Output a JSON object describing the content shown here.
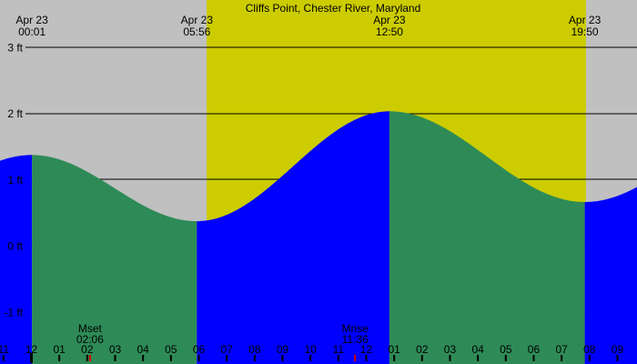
{
  "chart_data": {
    "type": "area",
    "title": "Cliffs Point, Chester River, Maryland",
    "description": "Tide level curve; blue fill = rising (flood) tide, green fill = falling (ebb) tide; yellow band = daylight, gray = night",
    "y_axis": {
      "unit": "ft",
      "ticks": [
        {
          "label": "3 ft",
          "value": 3
        },
        {
          "label": "2 ft",
          "value": 2
        },
        {
          "label": "1 ft",
          "value": 1
        },
        {
          "label": "0 ft",
          "value": 0
        },
        {
          "label": "-1 ft",
          "value": -1
        }
      ],
      "visible_range_ft": [
        -1.79,
        3.71
      ],
      "grid": true
    },
    "x_axis": {
      "unit": "hour-of-day",
      "first_label_hour": -1,
      "hour_labels": [
        "11",
        "12",
        "01",
        "02",
        "03",
        "04",
        "05",
        "06",
        "07",
        "08",
        "09",
        "10",
        "11",
        "12",
        "01",
        "02",
        "03",
        "04",
        "05",
        "06",
        "07",
        "08",
        "09"
      ],
      "visible_range_hours": [
        -1.13,
        21.7
      ]
    },
    "events": [
      {
        "date": "Apr 23",
        "time": "00:01",
        "hour": 0.02,
        "level_ft": 1.37,
        "kind": "high"
      },
      {
        "date": "Apr 23",
        "time": "05:56",
        "hour": 5.93,
        "level_ft": 0.37,
        "kind": "low"
      },
      {
        "date": "Apr 23",
        "time": "12:50",
        "hour": 12.83,
        "level_ft": 2.03,
        "kind": "high"
      },
      {
        "date": "Apr 23",
        "time": "19:50",
        "hour": 19.83,
        "level_ft": 0.66,
        "kind": "low"
      }
    ],
    "moon_events": [
      {
        "label": "Mset",
        "time": "02:06",
        "hour": 2.1
      },
      {
        "label": "Mrise",
        "time": "11:36",
        "hour": 11.6
      }
    ],
    "daylight_hours": {
      "start": 6.28,
      "end": 19.87
    },
    "edge_levels_ft": {
      "chart_start": 1.26,
      "chart_end": 0.88
    },
    "colors": {
      "day_background": "#cccc00",
      "night_background": "#c0c0c0",
      "rising_fill": "#0000ff",
      "falling_fill": "#2e8b57",
      "moon_mark": "#dd0000",
      "text_and_grid": "#000000"
    }
  }
}
